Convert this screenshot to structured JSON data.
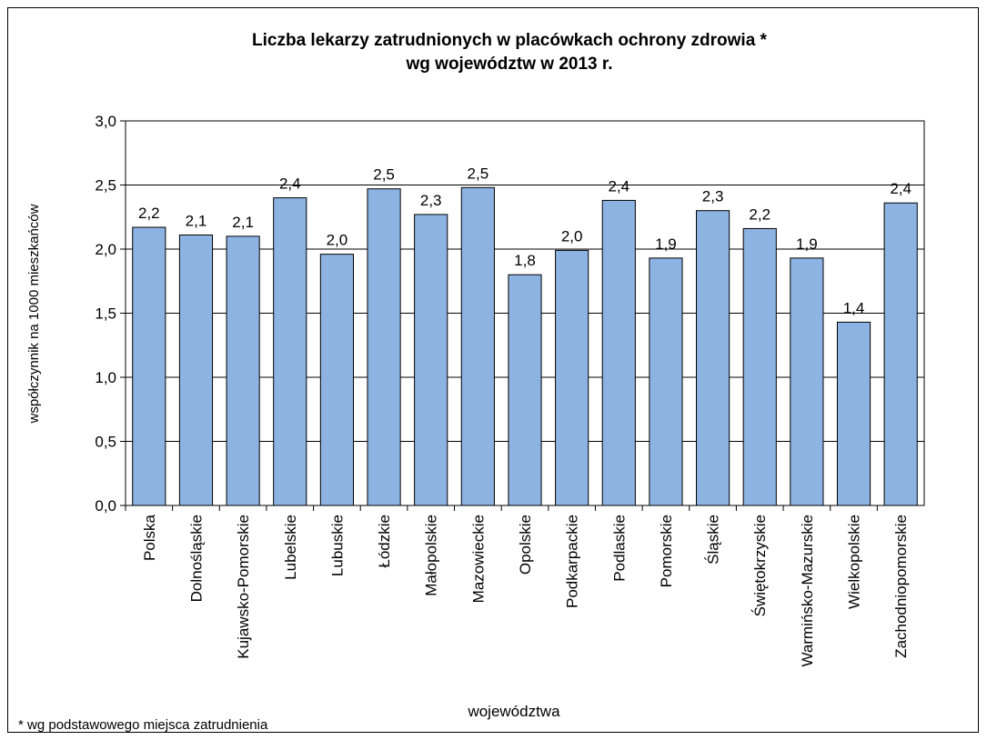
{
  "chart_data": {
    "type": "bar",
    "title": [
      "Liczba lekarzy zatrudnionych  w placówkach ochrony zdrowia *",
      "wg województw w 2013 r."
    ],
    "y_label": "współczynnik na 1000 mieszkańców",
    "x_label": "województwa",
    "footnote": "*  wg podstawowego miejsca zatrudnienia",
    "categories": [
      "Polska",
      "Dolnośląskie",
      "Kujawsko-Pomorskie",
      "Lubelskie",
      "Lubuskie",
      "Łódzkie",
      "Małopolskie",
      "Mazowieckie",
      "Opolskie",
      "Podkarpackie",
      "Podlaskie",
      "Pomorskie",
      "Śląskie",
      "Świętokrzyskie",
      "Warmińsko-Mazurskie",
      "Wielkopolskie",
      "Zachodniopomorskie"
    ],
    "values": [
      2.17,
      2.11,
      2.1,
      2.4,
      1.96,
      2.47,
      2.27,
      2.48,
      1.8,
      1.99,
      2.38,
      1.93,
      2.3,
      2.16,
      1.93,
      1.43,
      2.36
    ],
    "value_labels": [
      "2,2",
      "2,1",
      "2,1",
      "2,4",
      "2,0",
      "2,5",
      "2,3",
      "2,5",
      "1,8",
      "2,0",
      "2,4",
      "1,9",
      "2,3",
      "2,2",
      "1,9",
      "1,4",
      "2,4"
    ],
    "color": "#8db3e2",
    "ylim": [
      0,
      3
    ],
    "yticks": [
      {
        "value": 0,
        "label": "0,0"
      },
      {
        "value": 0.5,
        "label": "0,5"
      },
      {
        "value": 1,
        "label": "1,0"
      },
      {
        "value": 1.5,
        "label": "1,5"
      },
      {
        "value": 2,
        "label": "2,0"
      },
      {
        "value": 2.5,
        "label": "2,5"
      },
      {
        "value": 3,
        "label": "3,0"
      }
    ],
    "grid": true
  }
}
